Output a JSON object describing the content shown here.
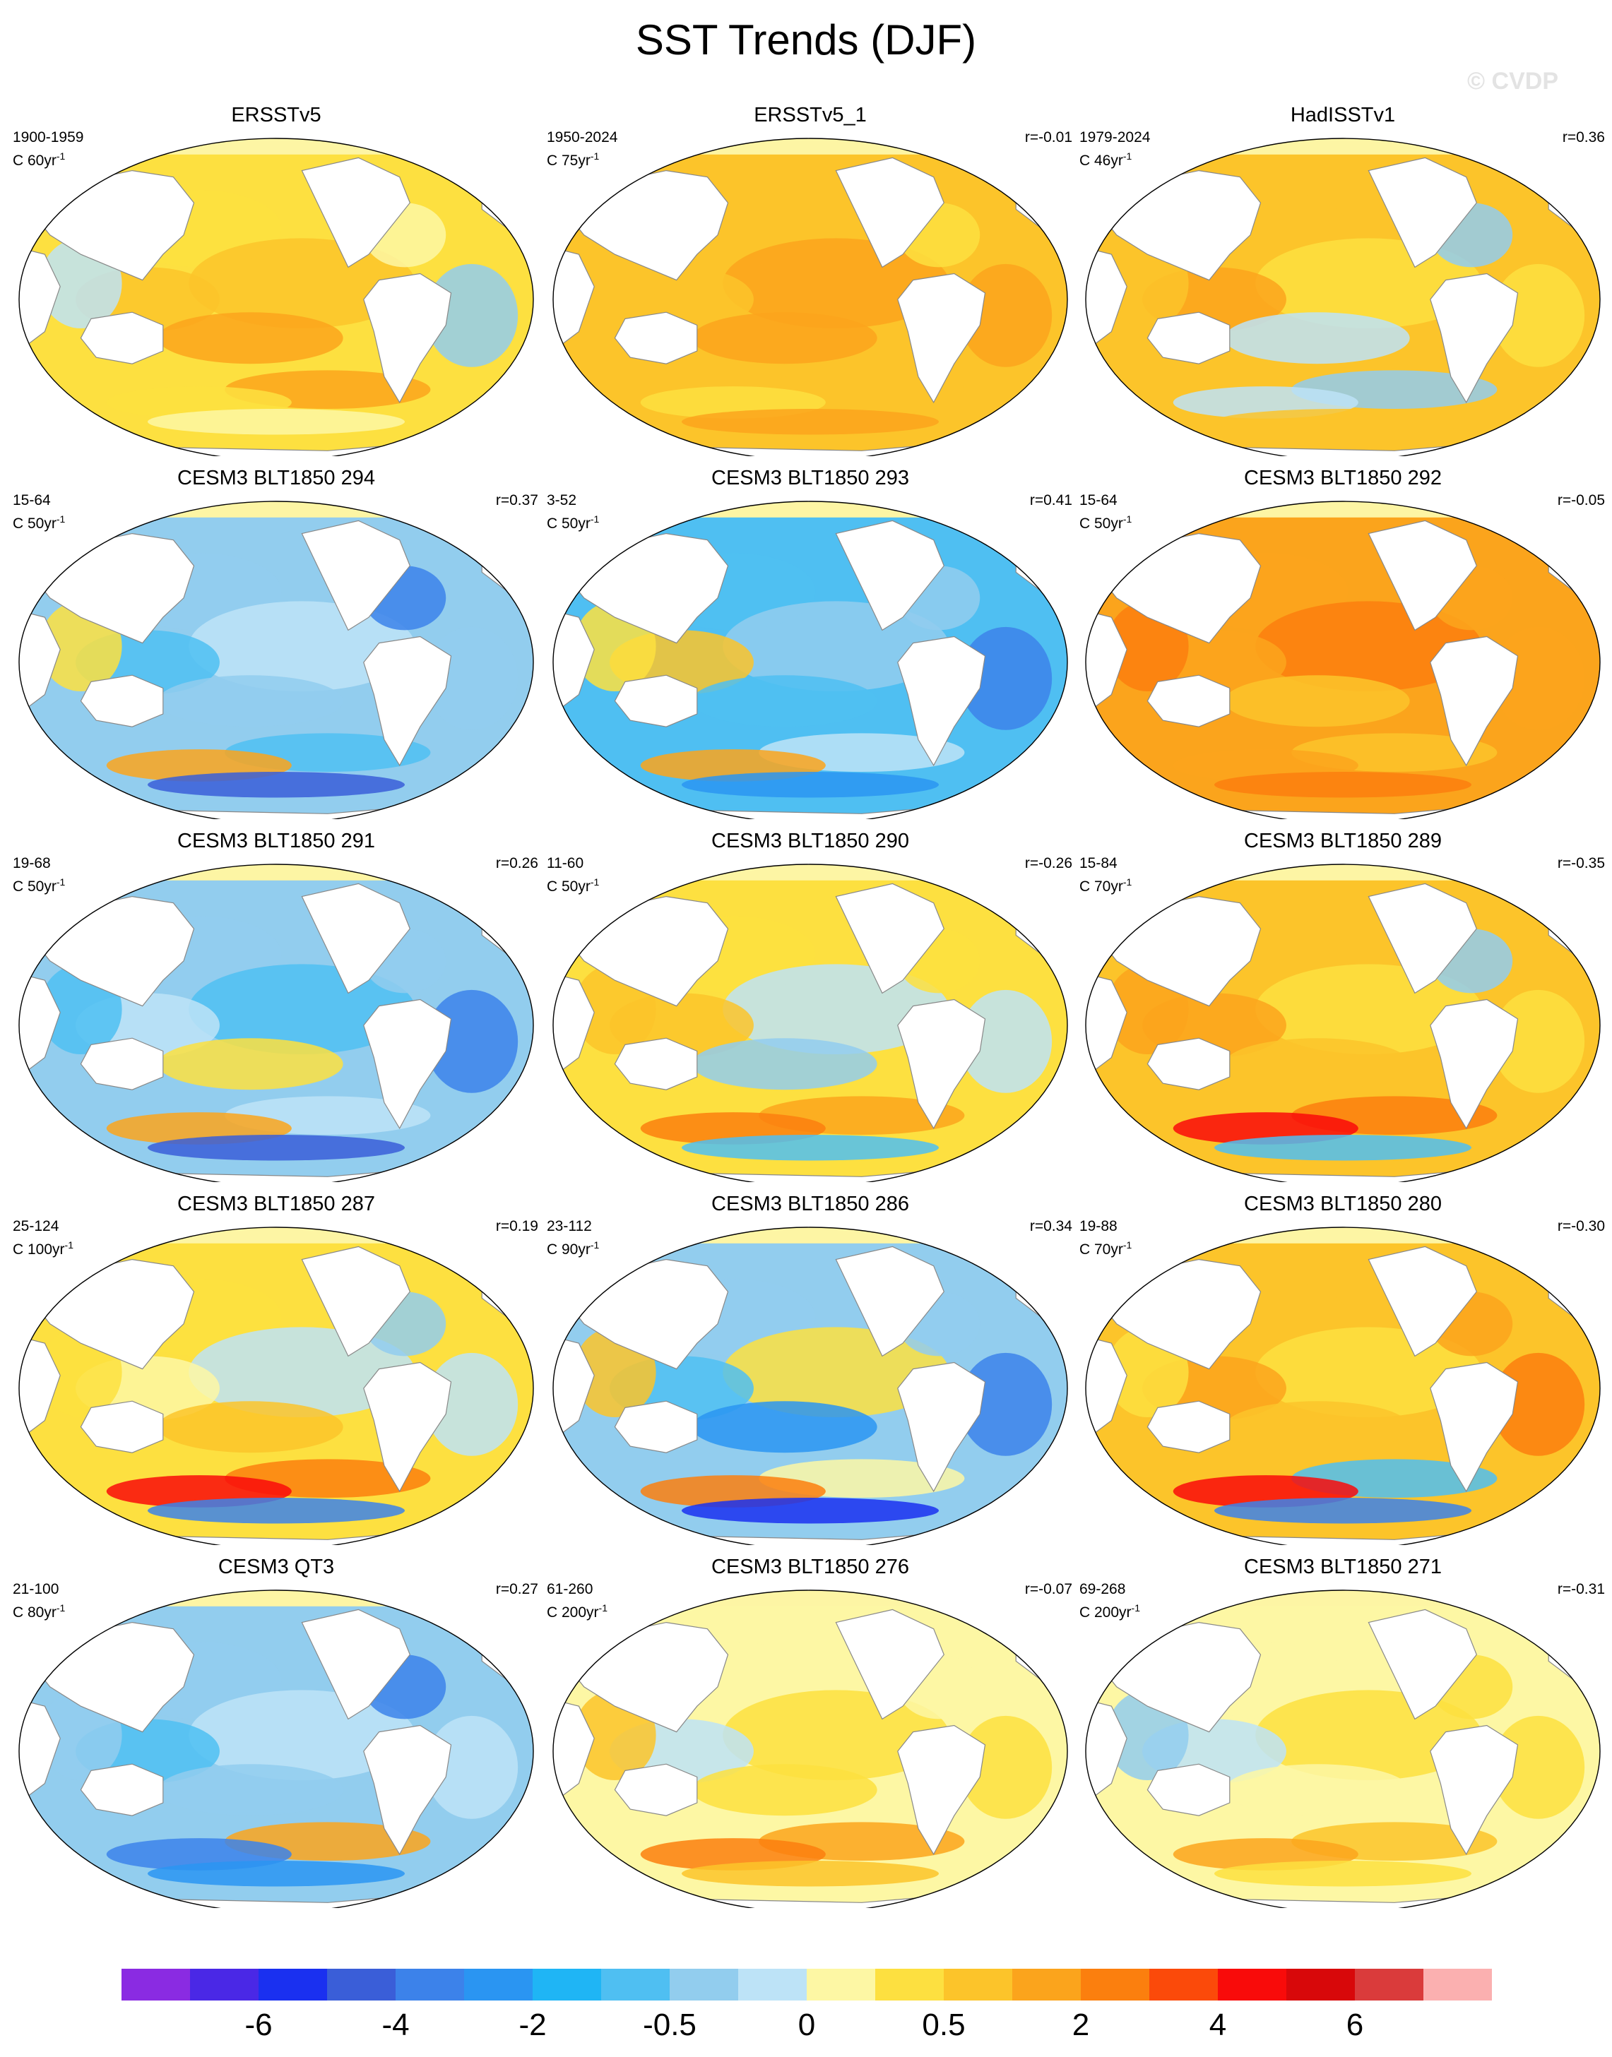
{
  "title": "SST Trends (DJF)",
  "watermark": "© CVDP",
  "colors": {
    "land": "#ffffff",
    "ice": "#fdf5a4",
    "coast": "#888888",
    "scale": [
      "#8a2be2",
      "#4a28e6",
      "#1a30f0",
      "#3a5ed8",
      "#3c82ea",
      "#2a95f2",
      "#1fb5f5",
      "#4fbff2",
      "#92cdee",
      "#bde3f7",
      "#fdf7a4",
      "#fde040",
      "#fcc42a",
      "#fba41c",
      "#fb7f0e",
      "#fb4a0a",
      "#f90b0a",
      "#d8080a",
      "#da3b3b",
      "#fbb0b0"
    ]
  },
  "colorbar": {
    "labels": [
      "-6",
      "-4",
      "-2",
      "-0.5",
      "0",
      "0.5",
      "2",
      "4",
      "6"
    ]
  },
  "panels": [
    {
      "title": "ERSSTv5",
      "years": "1900-1959",
      "scale": "C 60yr",
      "corr": "",
      "palette": [
        "#fde040",
        "#fcc42a",
        "#fcc42a",
        "#fba41c",
        "#fdf7a4",
        "#bde3f7",
        "#92cdee",
        "#fba41c",
        "#fde040",
        "#fdf7a4"
      ]
    },
    {
      "title": "ERSSTv5_1",
      "years": "1950-2024",
      "scale": "C 75yr",
      "corr": "r=-0.01",
      "palette": [
        "#fcc42a",
        "#fba41c",
        "#fcc42a",
        "#fba41c",
        "#fde040",
        "#fcc42a",
        "#fba41c",
        "#fcc42a",
        "#fde040",
        "#fba41c"
      ]
    },
    {
      "title": "HadISSTv1",
      "years": "1979-2024",
      "scale": "C 46yr",
      "corr": "r=0.36",
      "palette": [
        "#fcc42a",
        "#fde040",
        "#fba41c",
        "#bde3f7",
        "#92cdee",
        "#fcc42a",
        "#fde040",
        "#92cdee",
        "#bde3f7",
        "#fcc42a"
      ]
    },
    {
      "title": "CESM3 BLT1850 294",
      "years": "15-64",
      "scale": "C 50yr",
      "corr": "r=0.37",
      "palette": [
        "#92cdee",
        "#bde3f7",
        "#4fbff2",
        "#92cdee",
        "#3c82ea",
        "#fde040",
        "#92cdee",
        "#4fbff2",
        "#fba41c",
        "#3a5ed8"
      ]
    },
    {
      "title": "CESM3 BLT1850 293",
      "years": "3-52",
      "scale": "C 50yr",
      "corr": "r=0.41",
      "palette": [
        "#4fbff2",
        "#92cdee",
        "#fcc42a",
        "#4fbff2",
        "#92cdee",
        "#fde040",
        "#3c82ea",
        "#bde3f7",
        "#fba41c",
        "#2a95f2"
      ]
    },
    {
      "title": "CESM3 BLT1850 292",
      "years": "15-64",
      "scale": "C 50yr",
      "corr": "r=-0.05",
      "palette": [
        "#fba41c",
        "#fb7f0e",
        "#fba41c",
        "#fcc42a",
        "#fba41c",
        "#fb7f0e",
        "#fba41c",
        "#fcc42a",
        "#fba41c",
        "#fb7f0e"
      ]
    },
    {
      "title": "CESM3 BLT1850 291",
      "years": "19-68",
      "scale": "C 50yr",
      "corr": "r=0.26",
      "palette": [
        "#92cdee",
        "#4fbff2",
        "#bde3f7",
        "#fde040",
        "#92cdee",
        "#4fbff2",
        "#3c82ea",
        "#bde3f7",
        "#fba41c",
        "#3a5ed8"
      ]
    },
    {
      "title": "CESM3 BLT1850 290",
      "years": "11-60",
      "scale": "C 50yr",
      "corr": "r=-0.26",
      "palette": [
        "#fde040",
        "#bde3f7",
        "#fcc42a",
        "#92cdee",
        "#fde040",
        "#fcc42a",
        "#bde3f7",
        "#fba41c",
        "#fb7f0e",
        "#4fbff2"
      ]
    },
    {
      "title": "CESM3 BLT1850 289",
      "years": "15-84",
      "scale": "C 70yr",
      "corr": "r=-0.35",
      "palette": [
        "#fcc42a",
        "#fde040",
        "#fba41c",
        "#fcc42a",
        "#92cdee",
        "#fba41c",
        "#fde040",
        "#fb7f0e",
        "#f90b0a",
        "#4fbff2"
      ]
    },
    {
      "title": "CESM3 BLT1850 287",
      "years": "25-124",
      "scale": "C 100yr",
      "corr": "r=0.19",
      "palette": [
        "#fde040",
        "#bde3f7",
        "#fdf7a4",
        "#fcc42a",
        "#92cdee",
        "#fde040",
        "#bde3f7",
        "#fb7f0e",
        "#f90b0a",
        "#3c82ea"
      ]
    },
    {
      "title": "CESM3 BLT1850 286",
      "years": "23-112",
      "scale": "C 90yr",
      "corr": "r=0.34",
      "palette": [
        "#92cdee",
        "#fde040",
        "#4fbff2",
        "#2a95f2",
        "#92cdee",
        "#fcc42a",
        "#3c82ea",
        "#fdf7a4",
        "#fb7f0e",
        "#1a30f0"
      ]
    },
    {
      "title": "CESM3 BLT1850 280",
      "years": "19-88",
      "scale": "C 70yr",
      "corr": "r=-0.30",
      "palette": [
        "#fcc42a",
        "#fde040",
        "#fba41c",
        "#fcc42a",
        "#fba41c",
        "#fde040",
        "#fb7f0e",
        "#4fbff2",
        "#f90b0a",
        "#3c82ea"
      ]
    },
    {
      "title": "CESM3 QT3",
      "years": "21-100",
      "scale": "C 80yr",
      "corr": "r=0.27",
      "palette": [
        "#92cdee",
        "#bde3f7",
        "#4fbff2",
        "#92cdee",
        "#3c82ea",
        "#92cdee",
        "#bde3f7",
        "#fba41c",
        "#3c82ea",
        "#2a95f2"
      ]
    },
    {
      "title": "CESM3 BLT1850 276",
      "years": "61-260",
      "scale": "C 200yr",
      "corr": "r=-0.07",
      "palette": [
        "#fdf7a4",
        "#fde040",
        "#bde3f7",
        "#fde040",
        "#fdf7a4",
        "#fcc42a",
        "#fde040",
        "#fba41c",
        "#fb7f0e",
        "#fcc42a"
      ]
    },
    {
      "title": "CESM3 BLT1850 271",
      "years": "69-268",
      "scale": "C 200yr",
      "corr": "r=-0.31",
      "palette": [
        "#fdf7a4",
        "#fde040",
        "#bde3f7",
        "#fdf7a4",
        "#fde040",
        "#92cdee",
        "#fde040",
        "#fcc42a",
        "#fba41c",
        "#fde040"
      ]
    }
  ]
}
